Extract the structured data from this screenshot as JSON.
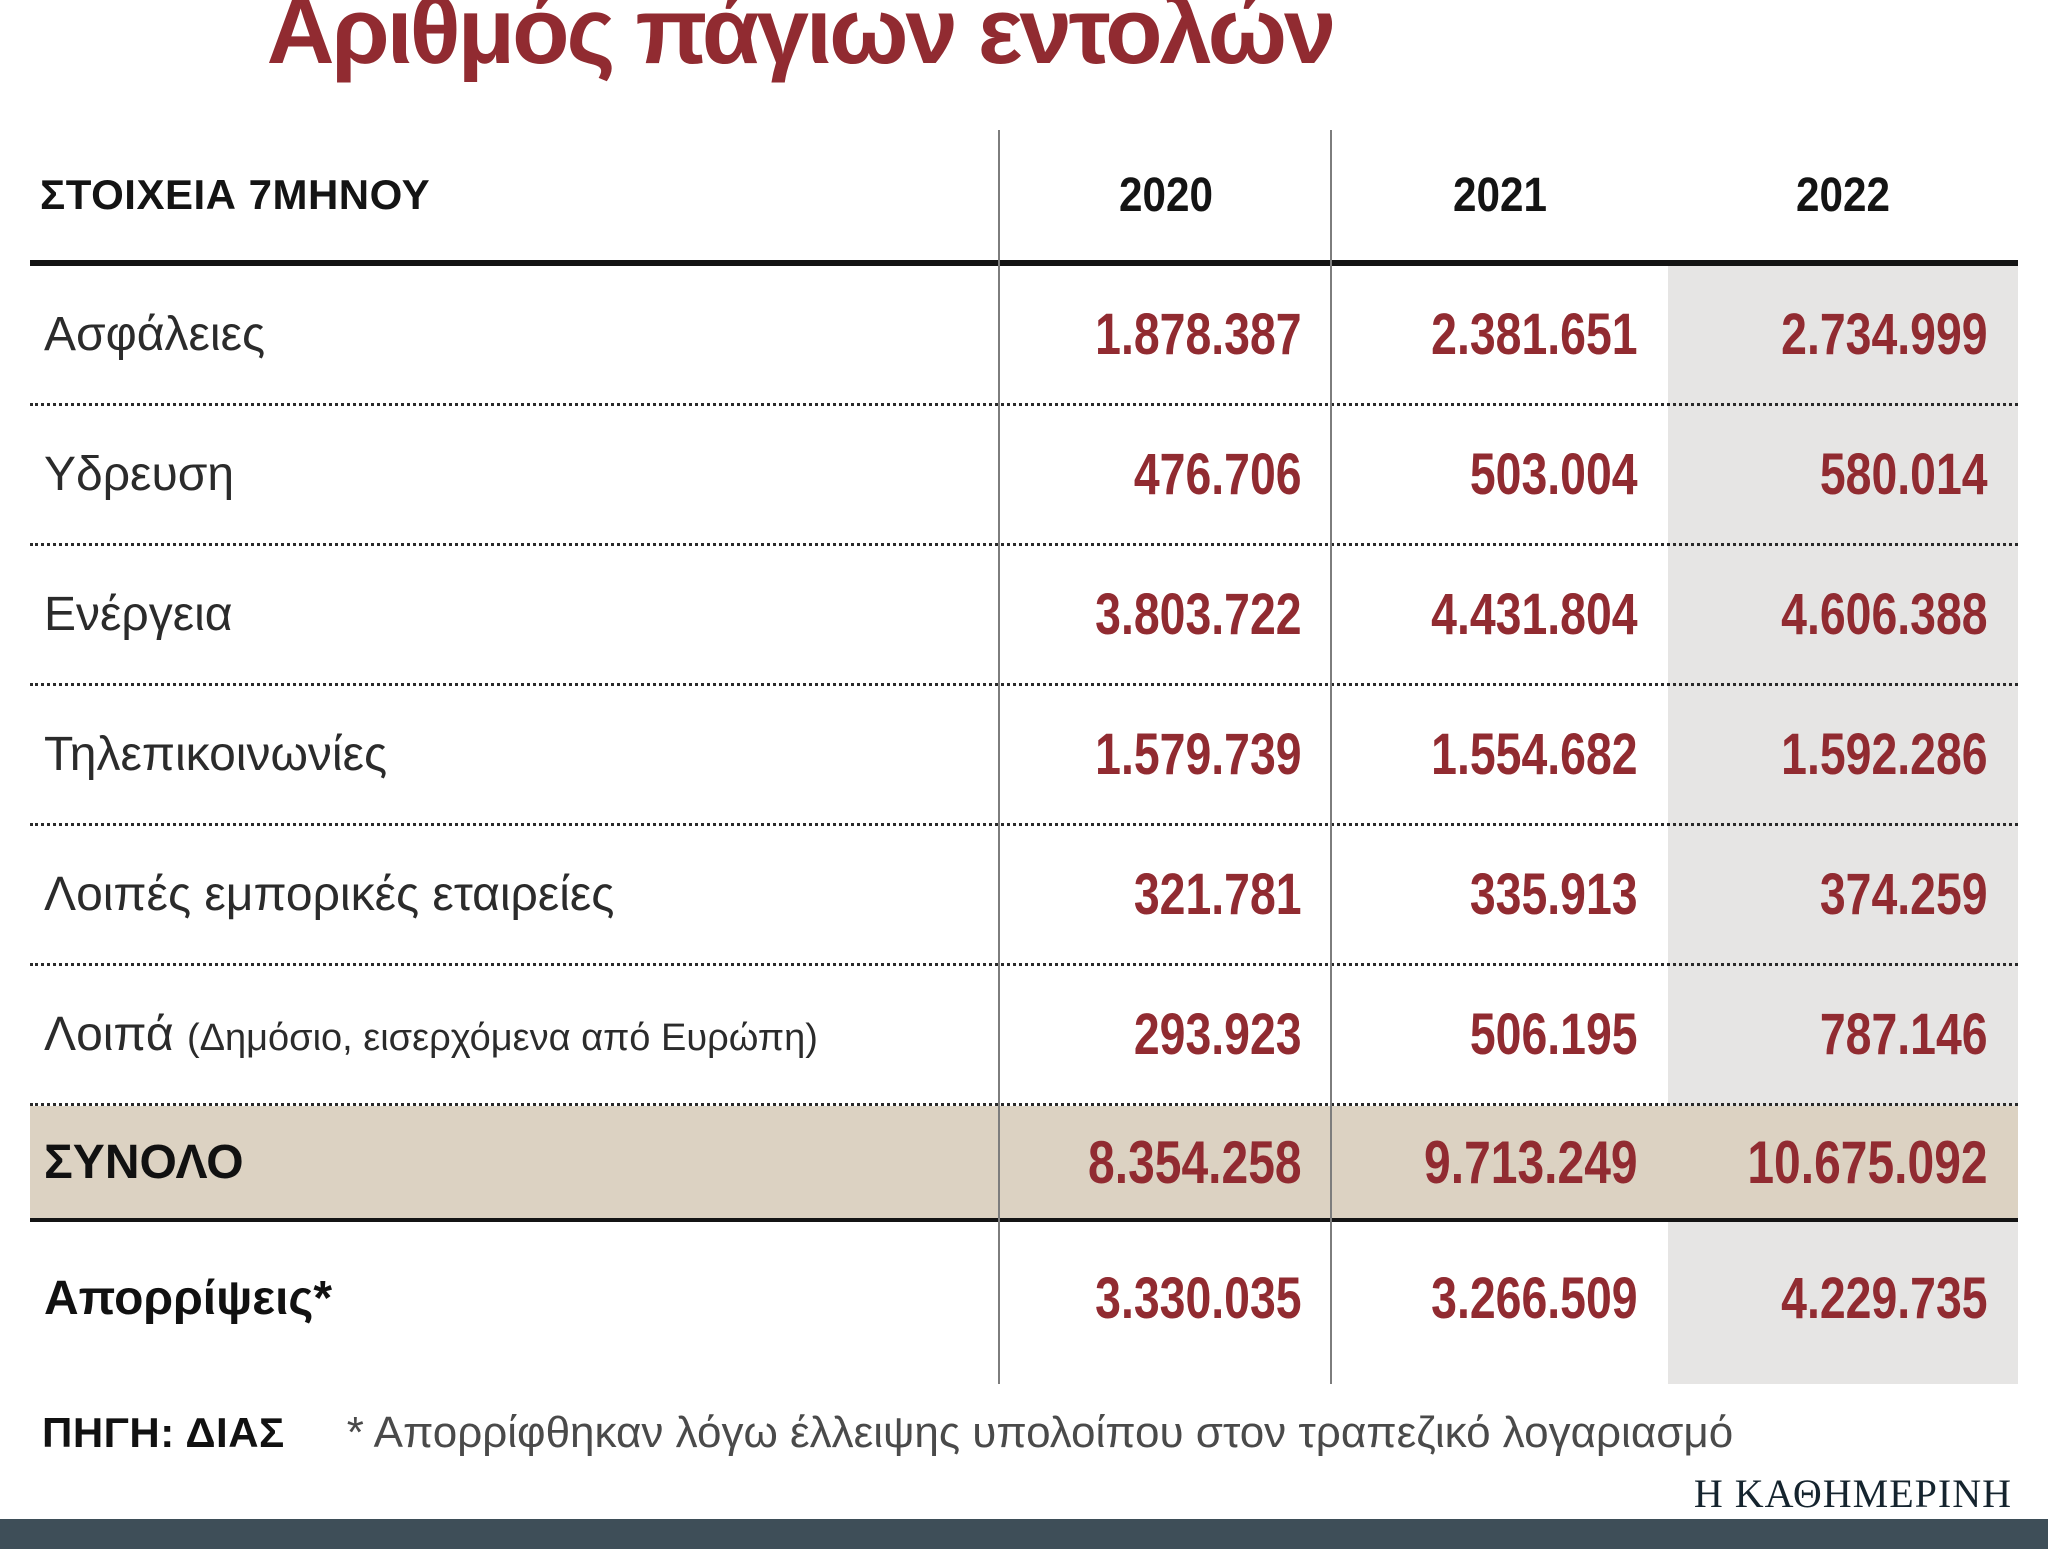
{
  "title": "Αριθμός πάγιων εντολών",
  "table": {
    "header": {
      "label": "ΣΤΟΙΧΕΙΑ 7ΜΗΝΟΥ",
      "years": [
        "2020",
        "2021",
        "2022"
      ]
    },
    "rows": [
      {
        "label": "Ασφάλειες",
        "note": "",
        "values": [
          "1.878.387",
          "2.381.651",
          "2.734.999"
        ]
      },
      {
        "label": "Υδρευση",
        "note": "",
        "values": [
          "476.706",
          "503.004",
          "580.014"
        ]
      },
      {
        "label": "Ενέργεια",
        "note": "",
        "values": [
          "3.803.722",
          "4.431.804",
          "4.606.388"
        ]
      },
      {
        "label": "Τηλεπικοινωνίες",
        "note": "",
        "values": [
          "1.579.739",
          "1.554.682",
          "1.592.286"
        ]
      },
      {
        "label": "Λοιπές εμπορικές εταιρείες",
        "note": "",
        "values": [
          "321.781",
          "335.913",
          "374.259"
        ]
      },
      {
        "label": "Λοιπά",
        "note": "(Δημόσιο, εισερχόμενα από Ευρώπη)",
        "values": [
          "293.923",
          "506.195",
          "787.146"
        ]
      }
    ],
    "total": {
      "label": "ΣΥΝΟΛΟ",
      "values": [
        "8.354.258",
        "9.713.249",
        "10.675.092"
      ]
    },
    "rejections": {
      "label": "Απορρίψεις*",
      "values": [
        "3.330.035",
        "3.266.509",
        "4.229.735"
      ]
    }
  },
  "footer": {
    "source": "ΠΗΓΗ: ΔΙΑΣ",
    "note": "* Απορρίφθηκαν λόγω έλλειψης υπολοίπου στον τραπεζικό λογαριασμό",
    "brand": "Η ΚΑΘΗΜΕΡΙΝΗ"
  },
  "colors": {
    "accent": "#912b31",
    "total_bg": "#dcd2c2",
    "col2022_bg": "#e6e5e4",
    "brand_bar": "#3e4e58"
  },
  "chart_data": {
    "type": "table",
    "title": "Αριθμός πάγιων εντολών",
    "subtitle": "ΣΤΟΙΧΕΙΑ 7ΜΗΝΟΥ",
    "columns": [
      "ΣΤΟΙΧΕΙΑ 7ΜΗΝΟΥ",
      "2020",
      "2021",
      "2022"
    ],
    "categories": [
      "Ασφάλειες",
      "Υδρευση",
      "Ενέργεια",
      "Τηλεπικοινωνίες",
      "Λοιπές εμπορικές εταιρείες",
      "Λοιπά (Δημόσιο, εισερχόμενα από Ευρώπη)",
      "ΣΥΝΟΛΟ",
      "Απορρίψεις*"
    ],
    "series": [
      {
        "name": "2020",
        "values": [
          1878387,
          476706,
          3803722,
          1579739,
          321781,
          293923,
          8354258,
          3330035
        ]
      },
      {
        "name": "2021",
        "values": [
          2381651,
          503004,
          4431804,
          1554682,
          335913,
          506195,
          9713249,
          3266509
        ]
      },
      {
        "name": "2022",
        "values": [
          2734999,
          580014,
          4606388,
          1592286,
          374259,
          787146,
          10675092,
          4229735
        ]
      }
    ],
    "highlighted_column": "2022",
    "highlighted_row": "ΣΥΝΟΛΟ",
    "source": "ΠΗΓΗ: ΔΙΑΣ",
    "footnote": "* Απορρίφθηκαν λόγω έλλειψης υπολοίπου στον τραπεζικό λογαριασμό"
  }
}
